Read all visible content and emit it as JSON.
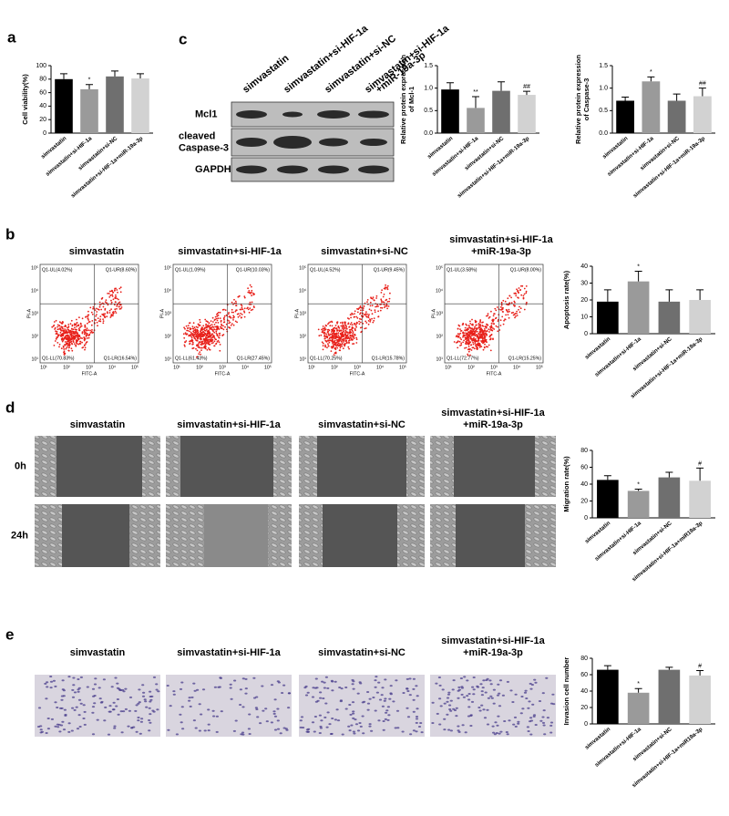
{
  "chart_data": [
    {
      "type": "bar",
      "y_label": [
        "Cell viability(%)"
      ],
      "categories": [
        "simvastatin",
        "simvastatin+si-HIF-1a",
        "simvastatin+si-NC",
        "simvastatin+si-HIF-1a+miR-19a-3p"
      ],
      "values": [
        80,
        65,
        84,
        81
      ],
      "errors": [
        8,
        7,
        8,
        7
      ],
      "colors": [
        "#000000",
        "#9a9a9a",
        "#6f6f6f",
        "#d2d2d2"
      ],
      "ylim": [
        0,
        100
      ],
      "yticks": [
        0,
        20,
        40,
        60,
        80,
        100
      ],
      "annotations": [
        {
          "category": "simvastatin+si-HIF-1a",
          "text": "*"
        }
      ]
    },
    {
      "type": "bar",
      "y_label": [
        "Relative protein expression",
        "of Mcl-1"
      ],
      "categories": [
        "simvastatin",
        "simvastatin+si-HIF-1a",
        "simvastatin+si-NC",
        "simvastatin+si-HIF-1a+miR-19a-3p"
      ],
      "values": [
        0.97,
        0.56,
        0.94,
        0.85
      ],
      "errors": [
        0.15,
        0.25,
        0.2,
        0.08
      ],
      "colors": [
        "#000000",
        "#9a9a9a",
        "#6f6f6f",
        "#d2d2d2"
      ],
      "ylim": [
        0,
        1.5
      ],
      "yticks": [
        {
          "value": 0,
          "label": "0.0"
        },
        0.5,
        {
          "value": 1,
          "label": "1.0"
        },
        1.5
      ],
      "annotations": [
        {
          "category": "simvastatin+si-HIF-1a",
          "text": "**"
        },
        {
          "category": "simvastatin+si-HIF-1a+miR-19a-3p",
          "text": "##"
        }
      ]
    },
    {
      "type": "bar",
      "y_label": [
        "Relative protein expression",
        "of Caspase-3"
      ],
      "categories": [
        "simvastatin",
        "simvastatin+si-HIF-1a",
        "simvastatin+si-NC",
        "simvastatin+si-HIF-1a+miR-19a-3p"
      ],
      "values": [
        0.72,
        1.15,
        0.72,
        0.82
      ],
      "errors": [
        0.08,
        0.1,
        0.15,
        0.18
      ],
      "colors": [
        "#000000",
        "#9a9a9a",
        "#6f6f6f",
        "#d2d2d2"
      ],
      "ylim": [
        0,
        1.5
      ],
      "yticks": [
        {
          "value": 0,
          "label": "0.0"
        },
        0.5,
        {
          "value": 1,
          "label": "1.0"
        },
        1.5
      ],
      "annotations": [
        {
          "category": "simvastatin+si-HIF-1a",
          "text": "*"
        },
        {
          "category": "simvastatin+si-HIF-1a+miR-19a-3p",
          "text": "##"
        }
      ]
    },
    {
      "type": "bar",
      "y_label": [
        "Apoptosis rate(%)"
      ],
      "categories": [
        "simvastatin",
        "simvastatin+si-HIF-1a",
        "simvastatin+si-NC",
        "simvastatin+si-HIF-1a+miR-19a-3p"
      ],
      "values": [
        19,
        31,
        19,
        20
      ],
      "errors": [
        7,
        6,
        7,
        6
      ],
      "colors": [
        "#000000",
        "#9a9a9a",
        "#6f6f6f",
        "#d2d2d2"
      ],
      "ylim": [
        0,
        40
      ],
      "yticks": [
        0,
        10,
        20,
        30,
        40
      ],
      "annotations": [
        {
          "category": "simvastatin+si-HIF-1a",
          "text": "*"
        }
      ]
    },
    {
      "type": "bar",
      "y_label": [
        "Migration rate(%)"
      ],
      "categories": [
        "simvastatin",
        "simvastatin+si-HIF-1a",
        "simvastatin+si-NC",
        "simvastatin+si-HIF-1a+miR19a-3p"
      ],
      "values": [
        45,
        32,
        48,
        44
      ],
      "errors": [
        5,
        2,
        6,
        15
      ],
      "colors": [
        "#000000",
        "#9a9a9a",
        "#6f6f6f",
        "#d2d2d2"
      ],
      "ylim": [
        0,
        80
      ],
      "yticks": [
        0,
        20,
        40,
        60,
        80
      ],
      "annotations": [
        {
          "category": "simvastatin+si-HIF-1a",
          "text": "*"
        },
        {
          "category": "simvastatin+si-HIF-1a+miR19a-3p",
          "text": "#"
        }
      ]
    },
    {
      "type": "bar",
      "y_label": [
        "Invasion cell number"
      ],
      "categories": [
        "simvastatin",
        "simvastatin+si-HIF-1a",
        "simvastatin+si-NC",
        "simvastatin+si-HIF-1a+miR19a-3p"
      ],
      "values": [
        66,
        38,
        66,
        59
      ],
      "errors": [
        5,
        5,
        3,
        6
      ],
      "colors": [
        "#000000",
        "#9a9a9a",
        "#6f6f6f",
        "#d2d2d2"
      ],
      "ylim": [
        0,
        80
      ],
      "yticks": [
        0,
        20,
        40,
        60,
        80
      ],
      "annotations": [
        {
          "category": "simvastatin+si-HIF-1a",
          "text": "*"
        },
        {
          "category": "simvastatin+si-HIF-1a+miR19a-3p",
          "text": "#"
        }
      ]
    }
  ],
  "figure": {
    "panel_labels": [
      "a",
      "c",
      "b",
      "d",
      "e"
    ],
    "blot": {
      "columns": [
        [
          "simvastatin"
        ],
        [
          "simvastatin+si-HIF-1a"
        ],
        [
          "simvastatin+si-NC"
        ],
        [
          "simvastatin+si-HIF-1a",
          "+miR-19a-3p"
        ]
      ],
      "rows": [
        [
          "Mcl1"
        ],
        [
          "cleaved",
          "Caspase-3"
        ],
        [
          "GAPDH"
        ]
      ]
    },
    "flow": {
      "titles": [
        [
          "simvastatin"
        ],
        [
          "simvastatin+si-HIF-1a"
        ],
        [
          "simvastatin+si-NC"
        ],
        [
          "simvastatin+si-HIF-1a",
          "+miR-19a-3p"
        ]
      ],
      "x_label": "FITC-A",
      "y_label": "PI-A",
      "ticks": [
        "10¹",
        "10²",
        "10³",
        "10⁴",
        "10⁵"
      ],
      "quadrants": [
        [
          "Q1-UL(4.02%)",
          "Q1-UR(8.60%)",
          "Q1-LL(70.83%)",
          "Q1-LR(16.54%)"
        ],
        [
          "Q1-UL(1.09%)",
          "Q1-UR(10.03%)",
          "Q1-LL(61.43%)",
          "Q1-LR(27.45%)"
        ],
        [
          "Q1-UL(4.52%)",
          "Q1-UR(9.45%)",
          "Q1-LL(70.25%)",
          "Q1-LR(15.78%)"
        ],
        [
          "Q1-UL(3.58%)",
          "Q1-UR(8.00%)",
          "Q1-LL(72.77%)",
          "Q1-LR(15.25%)"
        ]
      ]
    },
    "wound": {
      "titles": [
        [
          "simvastatin"
        ],
        [
          "simvastatin+si-HIF-1a"
        ],
        [
          "simvastatin+si-NC"
        ],
        [
          "simvastatin+si-HIF-1a",
          "+miR-19a-3p"
        ]
      ],
      "rows": [
        "0h",
        "24h"
      ]
    },
    "invasion": {
      "titles": [
        [
          "simvastatin"
        ],
        [
          "simvastatin+si-HIF-1a"
        ],
        [
          "simvastatin+si-NC"
        ],
        [
          "simvastatin+si-HIF-1a",
          "+miR-19a-3p"
        ]
      ]
    }
  }
}
